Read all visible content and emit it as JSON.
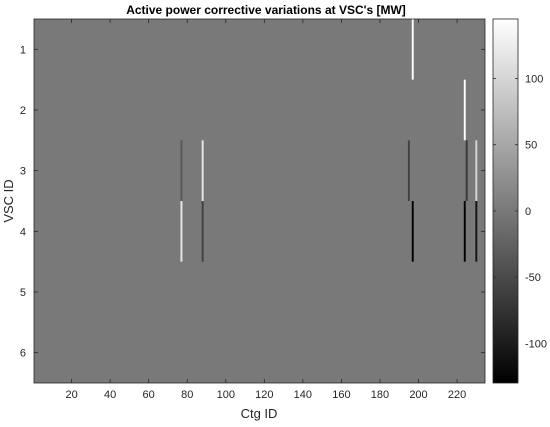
{
  "chart_data": {
    "type": "heatmap",
    "title": "Active power corrective variations at VSC's [MW]",
    "xlabel": "Ctg ID",
    "ylabel": "VSC ID",
    "xlim": [
      0.5,
      234.5
    ],
    "ylim": [
      0.5,
      6.5
    ],
    "y_reversed": true,
    "xticks": [
      20,
      40,
      60,
      80,
      100,
      120,
      140,
      160,
      180,
      200,
      220
    ],
    "yticks": [
      1,
      2,
      3,
      4,
      5,
      6
    ],
    "colorbar": {
      "colormap": "gray",
      "clim": [
        -130,
        145
      ],
      "ticks": [
        -100,
        -50,
        0,
        50,
        100
      ]
    },
    "background_value": 0,
    "cells": [
      {
        "x": 77,
        "y": 3,
        "value": -35
      },
      {
        "x": 77,
        "y": 4,
        "value": 120
      },
      {
        "x": 88,
        "y": 3,
        "value": 120
      },
      {
        "x": 88,
        "y": 4,
        "value": -60
      },
      {
        "x": 195,
        "y": 3,
        "value": -60
      },
      {
        "x": 197,
        "y": 1,
        "value": 145
      },
      {
        "x": 197,
        "y": 4,
        "value": -130
      },
      {
        "x": 224,
        "y": 2,
        "value": 145
      },
      {
        "x": 224,
        "y": 4,
        "value": -130
      },
      {
        "x": 225,
        "y": 3,
        "value": -70
      },
      {
        "x": 230,
        "y": 3,
        "value": 100
      },
      {
        "x": 230,
        "y": 4,
        "value": -110
      }
    ]
  }
}
